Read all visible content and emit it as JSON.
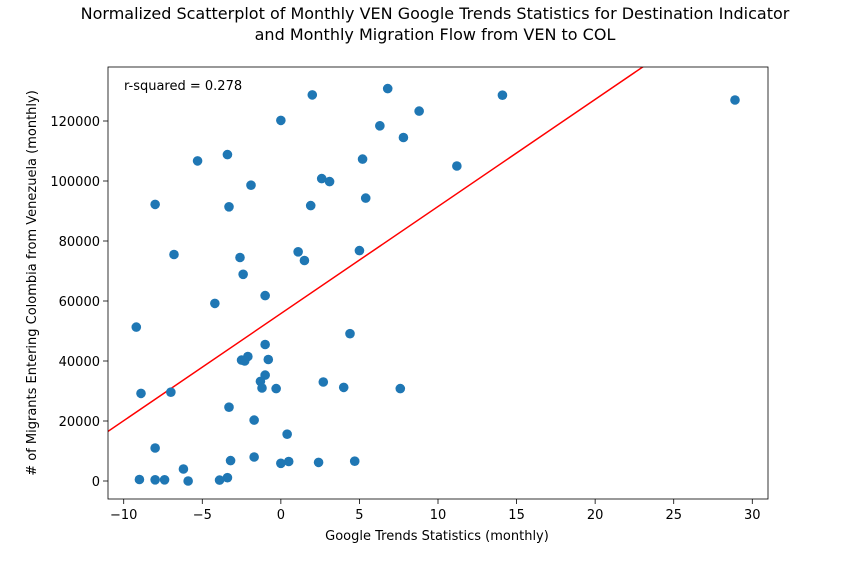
{
  "chart_data": {
    "type": "scatter",
    "title": [
      "Normalized Scatterplot of Monthly VEN Google Trends Statistics for Destination Indicator",
      "and Monthly Migration Flow from VEN to COL"
    ],
    "xlabel": "Google Trends Statistics (monthly)",
    "ylabel": "# of Migrants Entering Colombia from Venezuela (monthly)",
    "xlim": [
      -11,
      31
    ],
    "ylim": [
      -6000,
      138000
    ],
    "xticks": [
      -10,
      -5,
      0,
      5,
      10,
      15,
      20,
      25,
      30
    ],
    "xtick_labels": [
      "−10",
      "−5",
      "0",
      "5",
      "10",
      "15",
      "20",
      "25",
      "30"
    ],
    "yticks": [
      0,
      20000,
      40000,
      60000,
      80000,
      100000,
      120000
    ],
    "ytick_labels": [
      "0",
      "20000",
      "40000",
      "60000",
      "80000",
      "100000",
      "120000"
    ],
    "annotation": "r-squared = 0.278",
    "point_color": "#1f77b4",
    "line_color": "#ff0000",
    "fit_line": {
      "slope": 3570,
      "intercept": 55800
    },
    "grid": false,
    "points": [
      {
        "x": 6.8,
        "y": 130800
      },
      {
        "x": 2.0,
        "y": 128700
      },
      {
        "x": 14.1,
        "y": 128600
      },
      {
        "x": 28.9,
        "y": 127000
      },
      {
        "x": 8.8,
        "y": 123300
      },
      {
        "x": 0.0,
        "y": 120200
      },
      {
        "x": 6.3,
        "y": 118400
      },
      {
        "x": 7.8,
        "y": 114500
      },
      {
        "x": -3.4,
        "y": 108800
      },
      {
        "x": 5.2,
        "y": 107300
      },
      {
        "x": -5.3,
        "y": 106700
      },
      {
        "x": 11.2,
        "y": 105000
      },
      {
        "x": 2.6,
        "y": 100800
      },
      {
        "x": 3.1,
        "y": 99800
      },
      {
        "x": -1.9,
        "y": 98600
      },
      {
        "x": 5.4,
        "y": 94300
      },
      {
        "x": -8.0,
        "y": 92200
      },
      {
        "x": 1.9,
        "y": 91800
      },
      {
        "x": -3.3,
        "y": 91400
      },
      {
        "x": 5.0,
        "y": 76800
      },
      {
        "x": 1.1,
        "y": 76400
      },
      {
        "x": -6.8,
        "y": 75500
      },
      {
        "x": -2.6,
        "y": 74500
      },
      {
        "x": 1.5,
        "y": 73500
      },
      {
        "x": -2.4,
        "y": 68900
      },
      {
        "x": -1.0,
        "y": 61800
      },
      {
        "x": -4.2,
        "y": 59200
      },
      {
        "x": -9.2,
        "y": 51300
      },
      {
        "x": 4.4,
        "y": 49100
      },
      {
        "x": -1.0,
        "y": 45500
      },
      {
        "x": -2.1,
        "y": 41500
      },
      {
        "x": -2.5,
        "y": 40300
      },
      {
        "x": -2.3,
        "y": 40000
      },
      {
        "x": -0.8,
        "y": 40500
      },
      {
        "x": -1.0,
        "y": 35300
      },
      {
        "x": -1.3,
        "y": 33200
      },
      {
        "x": 2.7,
        "y": 33000
      },
      {
        "x": -1.2,
        "y": 31000
      },
      {
        "x": -0.3,
        "y": 30800
      },
      {
        "x": 4.0,
        "y": 31200
      },
      {
        "x": 7.6,
        "y": 30800
      },
      {
        "x": -8.9,
        "y": 29200
      },
      {
        "x": -7.0,
        "y": 29600
      },
      {
        "x": -3.3,
        "y": 24600
      },
      {
        "x": -1.7,
        "y": 20300
      },
      {
        "x": 0.4,
        "y": 15600
      },
      {
        "x": -8.0,
        "y": 11000
      },
      {
        "x": -1.7,
        "y": 8000
      },
      {
        "x": -3.2,
        "y": 6800
      },
      {
        "x": 4.7,
        "y": 6600
      },
      {
        "x": 0.5,
        "y": 6500
      },
      {
        "x": 2.4,
        "y": 6200
      },
      {
        "x": 0.0,
        "y": 5900
      },
      {
        "x": -6.2,
        "y": 4000
      },
      {
        "x": -3.4,
        "y": 1100
      },
      {
        "x": -9.0,
        "y": 500
      },
      {
        "x": -8.0,
        "y": 400
      },
      {
        "x": -7.4,
        "y": 400
      },
      {
        "x": -3.9,
        "y": 300
      },
      {
        "x": -5.9,
        "y": 0
      }
    ]
  }
}
